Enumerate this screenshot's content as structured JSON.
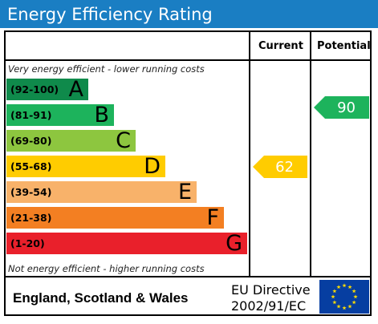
{
  "title": "Energy Efficiency Rating",
  "columns": {
    "current": "Current",
    "potential": "Potential"
  },
  "top_note": "Very energy efficient - lower running costs",
  "bottom_note": "Not energy efficient - higher running costs",
  "bands": [
    {
      "range": "(92-100)",
      "letter": "A",
      "color": "#0f8a4b"
    },
    {
      "range": "(81-91)",
      "letter": "B",
      "color": "#1db35c"
    },
    {
      "range": "(69-80)",
      "letter": "C",
      "color": "#8dc63f"
    },
    {
      "range": "(55-68)",
      "letter": "D",
      "color": "#ffcc00"
    },
    {
      "range": "(39-54)",
      "letter": "E",
      "color": "#f8b26a"
    },
    {
      "range": "(21-38)",
      "letter": "F",
      "color": "#f37f22"
    },
    {
      "range": "(1-20)",
      "letter": "G",
      "color": "#e9202b"
    }
  ],
  "current": {
    "value": "62",
    "band": "D",
    "color": "#ffcc00"
  },
  "potential": {
    "value": "90",
    "band": "B",
    "color": "#1db35c"
  },
  "footer": {
    "region": "England, Scotland & Wales",
    "directive_line1": "EU Directive",
    "directive_line2": "2002/91/EC",
    "flag_icon": "eu-flag-icon"
  }
}
